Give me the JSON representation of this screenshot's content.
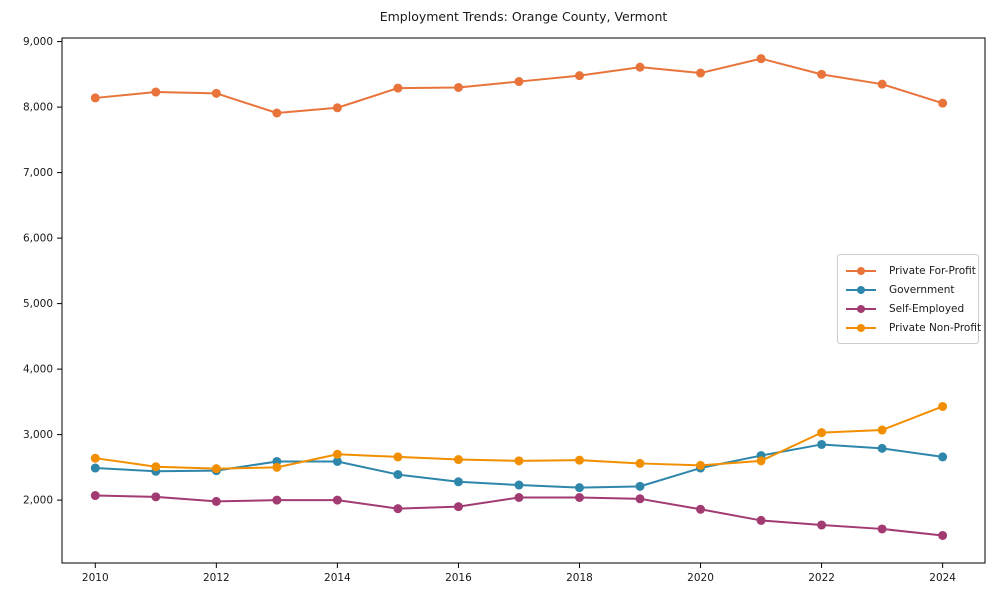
{
  "figure": {
    "title": "Employment Trends: Orange County, Vermont"
  },
  "chart_data": {
    "type": "line",
    "title": "Employment Trends: Orange County, Vermont",
    "xlabel": "",
    "ylabel": "",
    "grid": false,
    "legend_position": "right-middle",
    "marker": "circle",
    "x": [
      2010,
      2011,
      2012,
      2013,
      2014,
      2015,
      2016,
      2017,
      2018,
      2019,
      2020,
      2021,
      2022,
      2023,
      2024
    ],
    "series": [
      {
        "name": "Private For-Profit",
        "color": "#E8743B",
        "values": [
          8140,
          8230,
          8210,
          7910,
          7990,
          8290,
          8300,
          8390,
          8480,
          8610,
          8520,
          8740,
          8500,
          8350,
          8060
        ]
      },
      {
        "name": "Government",
        "color": "#2E86AB",
        "values": [
          2490,
          2440,
          2450,
          2590,
          2590,
          2390,
          2280,
          2230,
          2190,
          2210,
          2490,
          2680,
          2850,
          2790,
          2660
        ]
      },
      {
        "name": "Self-Employed",
        "color": "#A23B72",
        "values": [
          2070,
          2050,
          1980,
          2000,
          2000,
          1870,
          1900,
          2040,
          2040,
          2020,
          1860,
          1690,
          1620,
          1560,
          1460
        ]
      },
      {
        "name": "Private Non-Profit",
        "color": "#F18F01",
        "values": [
          2640,
          2510,
          2480,
          2500,
          2700,
          2660,
          2620,
          2600,
          2610,
          2560,
          2530,
          2600,
          3030,
          3070,
          3430
        ]
      }
    ],
    "xlim": [
      2009.45,
      2024.7
    ],
    "ylim": [
      1040,
      9055
    ],
    "xticks": [
      2010,
      2012,
      2014,
      2016,
      2018,
      2020,
      2022,
      2024
    ],
    "yticks": [
      2000,
      3000,
      4000,
      5000,
      6000,
      7000,
      8000,
      9000
    ]
  }
}
